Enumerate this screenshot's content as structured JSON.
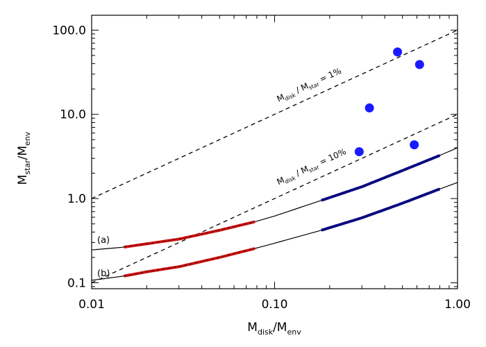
{
  "chart_data": {
    "type": "line",
    "xscale": "log",
    "yscale": "log",
    "xlim": [
      0.01,
      1.0
    ],
    "ylim": [
      0.085,
      150.0
    ],
    "xticks": [
      {
        "value": 0.01,
        "label": "0.01"
      },
      {
        "value": 0.1,
        "label": "0.10"
      },
      {
        "value": 1.0,
        "label": "1.00"
      }
    ],
    "yticks": [
      {
        "value": 0.1,
        "label": "0.1"
      },
      {
        "value": 1.0,
        "label": "1.0"
      },
      {
        "value": 10.0,
        "label": "10.0"
      },
      {
        "value": 100.0,
        "label": "100.0"
      }
    ],
    "xlabel": {
      "main": "M",
      "sub1": "disk",
      "slash": "/M",
      "sub2": "env"
    },
    "ylabel": {
      "main": "M",
      "sub1": "star",
      "slash": "/M",
      "sub2": "env"
    },
    "reference_lines": [
      {
        "label_main": "M",
        "label_sub1": "disk",
        "label_mid": " / M",
        "label_sub2": "star",
        "label_tail": " = 1%",
        "x": [
          0.01,
          1.0
        ],
        "y": [
          1.0,
          100.0
        ],
        "color": "#000000",
        "style": "dashed",
        "label_x": 0.105,
        "label_y": 14.0
      },
      {
        "label_main": "M",
        "label_sub1": "disk",
        "label_mid": " / M",
        "label_sub2": "star",
        "label_tail": " = 10%",
        "x": [
          0.01,
          1.0
        ],
        "y": [
          0.1,
          10.0
        ],
        "color": "#000000",
        "style": "dashed",
        "label_x": 0.105,
        "label_y": 1.45
      }
    ],
    "series": [
      {
        "label": "(a)",
        "color": "#000000",
        "x": [
          0.01,
          0.015,
          0.02,
          0.03,
          0.05,
          0.078,
          0.1,
          0.18,
          0.3,
          0.5,
          0.8,
          1.0
        ],
        "y": [
          0.245,
          0.265,
          0.29,
          0.33,
          0.42,
          0.53,
          0.62,
          0.95,
          1.38,
          2.15,
          3.25,
          4.0
        ],
        "segments": [
          {
            "x_from": 0.015,
            "x_to": 0.078,
            "color": "#cc1111"
          },
          {
            "x_from": 0.18,
            "x_to": 0.8,
            "color": "#0a0a80"
          }
        ]
      },
      {
        "label": "(b)",
        "color": "#000000",
        "x": [
          0.01,
          0.015,
          0.02,
          0.03,
          0.05,
          0.078,
          0.1,
          0.18,
          0.3,
          0.5,
          0.8,
          1.0
        ],
        "y": [
          0.107,
          0.12,
          0.135,
          0.155,
          0.2,
          0.255,
          0.295,
          0.42,
          0.59,
          0.88,
          1.3,
          1.55
        ],
        "segments": [
          {
            "x_from": 0.015,
            "x_to": 0.078,
            "color": "#cc1111"
          },
          {
            "x_from": 0.18,
            "x_to": 0.8,
            "color": "#0a0a80"
          }
        ]
      }
    ],
    "points": {
      "color": "#1a1aff",
      "x": [
        0.47,
        0.62,
        0.33,
        0.29,
        0.58
      ],
      "y": [
        55.0,
        39.0,
        11.9,
        3.6,
        4.35
      ]
    },
    "grid": false,
    "legend": "none"
  }
}
